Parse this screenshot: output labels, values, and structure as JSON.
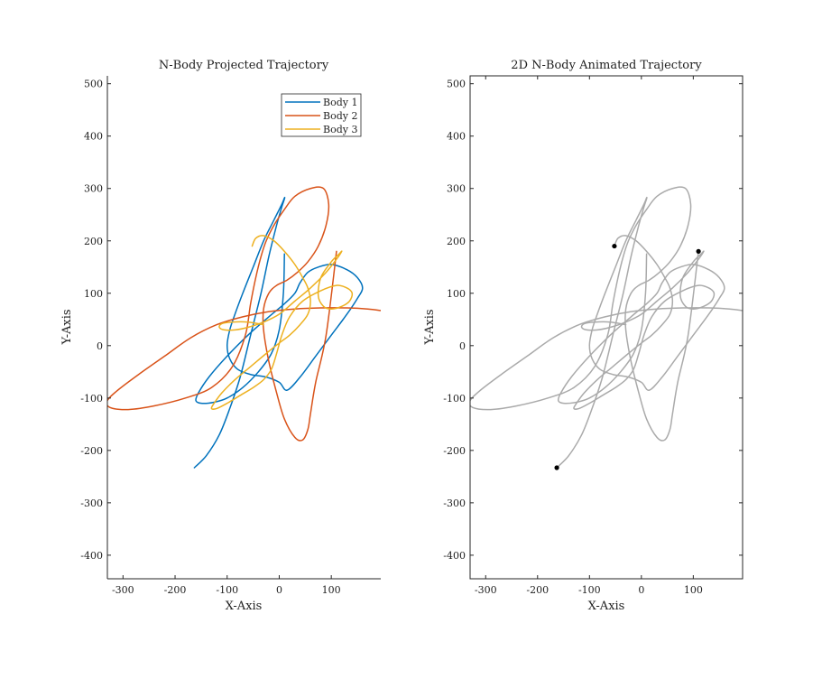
{
  "chart_data": [
    {
      "type": "line",
      "title": "N-Body Projected Trajectory",
      "xlabel": "X-Axis",
      "ylabel": "Y-Axis",
      "xlim": [
        -330,
        195
      ],
      "ylim": [
        -445,
        515
      ],
      "xticks": [
        "-300",
        "-200",
        "-100",
        "0",
        "100"
      ],
      "yticks": [
        "500",
        "400",
        "300",
        "200",
        "100",
        "0",
        "-100",
        "-200",
        "-300",
        "-400"
      ],
      "legend": "top-right",
      "series": [
        {
          "name": "Body 1",
          "color": "#0072BD",
          "x": [
            -163,
            -140,
            -115,
            -95,
            -75,
            -55,
            -35,
            -20,
            -5,
            5,
            10,
            10,
            5,
            -10,
            -30,
            -50,
            -70,
            -85,
            -95,
            -100,
            -95,
            -80,
            -55,
            -25,
            0,
            15,
            40,
            70,
            100,
            130,
            150,
            160,
            150,
            130,
            100,
            75,
            55,
            40,
            30,
            10,
            -20,
            -60,
            -100,
            -135,
            -155,
            -160,
            -150,
            -125,
            -100,
            -70,
            -40,
            -15,
            0,
            8,
            10
          ],
          "y": [
            -233,
            -210,
            -170,
            -120,
            -60,
            20,
            100,
            170,
            230,
            265,
            280,
            282,
            270,
            240,
            200,
            150,
            100,
            60,
            30,
            0,
            -25,
            -45,
            -55,
            -60,
            -70,
            -85,
            -60,
            -20,
            20,
            60,
            90,
            110,
            130,
            145,
            155,
            150,
            140,
            120,
            100,
            80,
            55,
            20,
            -20,
            -60,
            -90,
            -105,
            -110,
            -108,
            -100,
            -80,
            -50,
            -15,
            30,
            100,
            175
          ]
        },
        {
          "name": "Body 2",
          "color": "#D95319",
          "x": [
            195,
            170,
            130,
            80,
            30,
            -20,
            -70,
            -120,
            -170,
            -220,
            -270,
            -310,
            -330,
            -325,
            -290,
            -240,
            -180,
            -130,
            -90,
            -65,
            -55,
            -45,
            -35,
            -25,
            -10,
            10,
            30,
            60,
            85,
            95,
            90,
            75,
            55,
            35,
            15,
            -5,
            -20,
            -30,
            -30,
            -20,
            -5,
            10,
            30,
            45,
            55,
            60,
            70,
            90,
            110
          ],
          "y": [
            67,
            70,
            72,
            72,
            70,
            65,
            55,
            40,
            15,
            -20,
            -55,
            -85,
            -105,
            -118,
            -122,
            -115,
            -100,
            -80,
            -40,
            20,
            80,
            130,
            170,
            200,
            230,
            260,
            285,
            300,
            300,
            270,
            230,
            190,
            160,
            140,
            125,
            115,
            100,
            70,
            30,
            -30,
            -90,
            -140,
            -175,
            -180,
            -160,
            -130,
            -70,
            20,
            180
          ]
        },
        {
          "name": "Body 3",
          "color": "#EDB120",
          "x": [
            -52,
            -45,
            -30,
            -10,
            10,
            30,
            45,
            55,
            60,
            55,
            40,
            20,
            0,
            -25,
            -55,
            -85,
            -110,
            -125,
            -130,
            -120,
            -100,
            -75,
            -50,
            -30,
            -15,
            -5,
            5,
            20,
            45,
            80,
            110,
            130,
            140,
            135,
            120,
            100,
            85,
            75,
            80,
            100,
            115,
            120,
            110,
            90,
            60,
            30,
            0,
            -30,
            -60,
            -85,
            -105,
            -115,
            -110,
            -90,
            -60,
            -30
          ],
          "y": [
            190,
            205,
            210,
            200,
            180,
            155,
            130,
            110,
            85,
            60,
            40,
            20,
            5,
            -15,
            -40,
            -65,
            -90,
            -110,
            -120,
            -120,
            -110,
            -95,
            -80,
            -65,
            -45,
            -15,
            20,
            55,
            85,
            105,
            115,
            110,
            100,
            85,
            75,
            70,
            75,
            95,
            130,
            160,
            175,
            180,
            165,
            140,
            110,
            85,
            60,
            45,
            35,
            30,
            30,
            35,
            42,
            45,
            45,
            40
          ]
        }
      ]
    },
    {
      "type": "line",
      "title": "2D N-Body Animated Trajectory",
      "xlabel": "X-Axis",
      "ylabel": "Y-Axis",
      "xlim": [
        -330,
        195
      ],
      "ylim": [
        -445,
        515
      ],
      "xticks": [
        "-300",
        "-200",
        "-100",
        "0",
        "100"
      ],
      "yticks": [
        "500",
        "400",
        "300",
        "200",
        "100",
        "0",
        "-100",
        "-200",
        "-300",
        "-400"
      ],
      "trail_color": "#AAAAAA",
      "current_positions": [
        {
          "x": -163,
          "y": -233
        },
        {
          "x": 110,
          "y": 180
        },
        {
          "x": -52,
          "y": 190
        }
      ]
    }
  ]
}
